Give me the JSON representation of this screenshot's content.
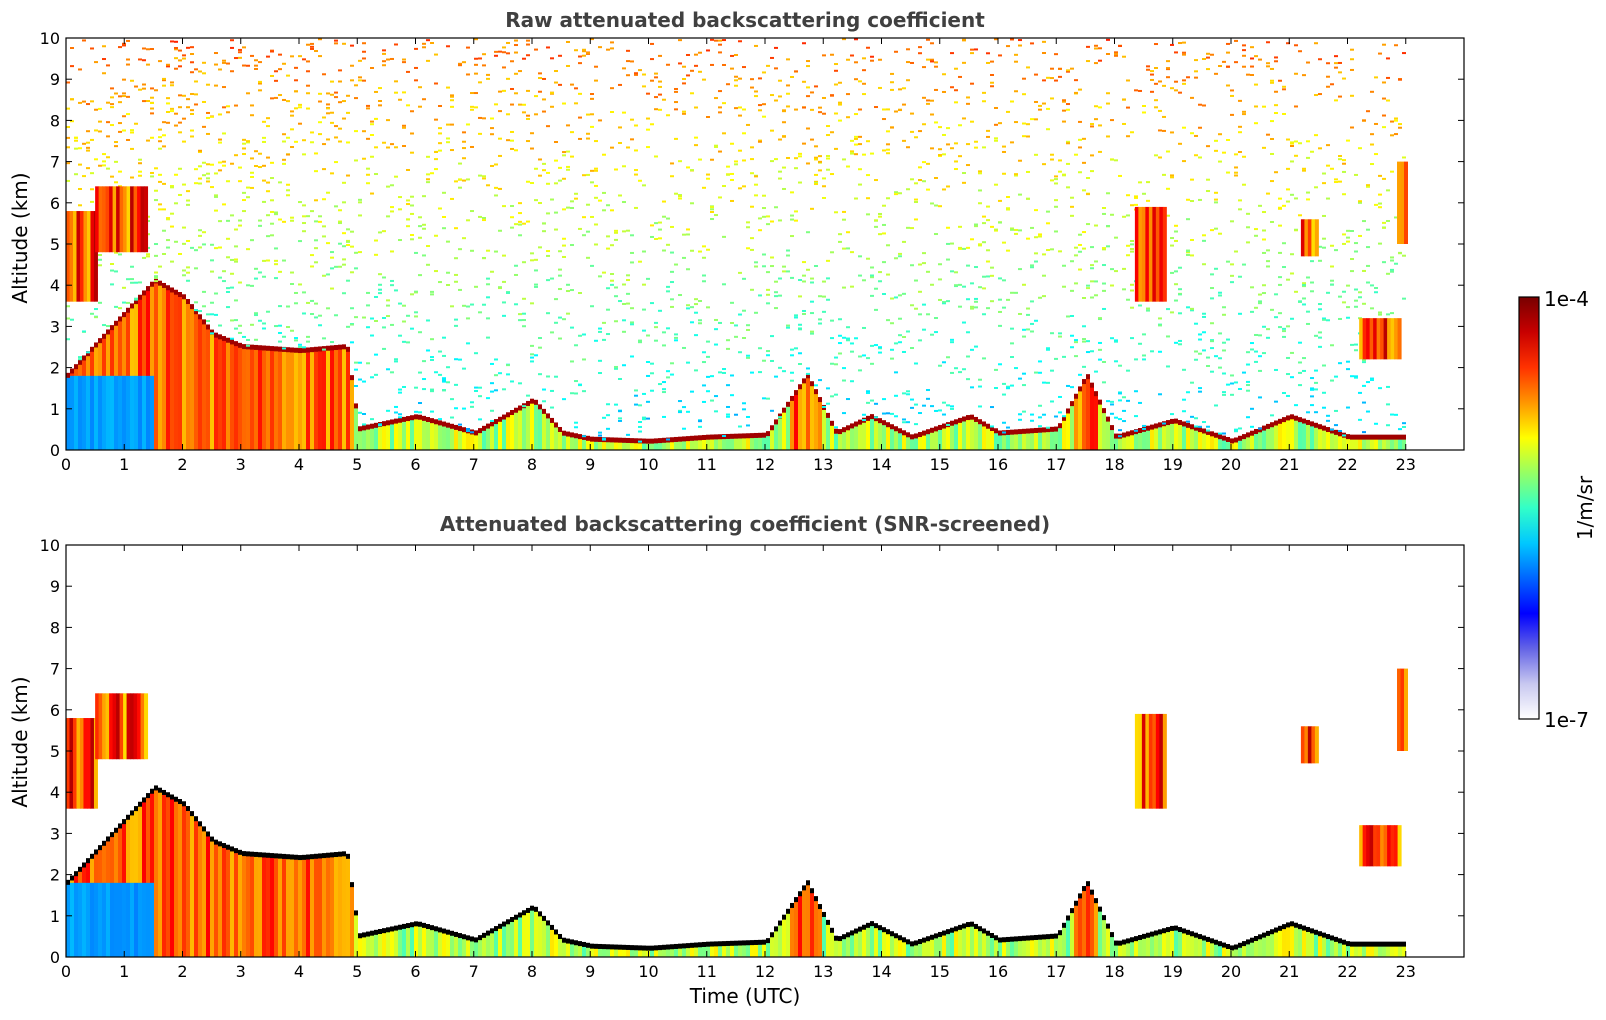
{
  "chart_data": [
    {
      "type": "heatmap",
      "title": "Raw attenuated backscattering coefficient",
      "xlabel": "",
      "ylabel": "Altitude (km)",
      "xlim": [
        0,
        24
      ],
      "ylim": [
        0,
        10
      ],
      "x_ticks": [
        0,
        1,
        2,
        3,
        4,
        5,
        6,
        7,
        8,
        9,
        10,
        11,
        12,
        13,
        14,
        15,
        16,
        17,
        18,
        19,
        20,
        21,
        22,
        23
      ],
      "y_ticks": [
        0,
        1,
        2,
        3,
        4,
        5,
        6,
        7,
        8,
        9,
        10
      ],
      "colormap": "jet",
      "color_scale": "log",
      "data_end_hour": 23,
      "features": {
        "boundary_layer_top_km": [
          [
            0.0,
            1.8
          ],
          [
            1.5,
            4.1
          ],
          [
            2.0,
            3.7
          ],
          [
            2.5,
            2.8
          ],
          [
            3.0,
            2.5
          ],
          [
            4.0,
            2.4
          ],
          [
            4.8,
            2.5
          ],
          [
            5.0,
            0.5
          ],
          [
            6.0,
            0.8
          ],
          [
            7.0,
            0.4
          ],
          [
            7.5,
            0.8
          ],
          [
            8.0,
            1.2
          ],
          [
            8.5,
            0.4
          ],
          [
            9.0,
            0.25
          ],
          [
            10.0,
            0.2
          ],
          [
            11.0,
            0.3
          ],
          [
            12.0,
            0.35
          ],
          [
            12.7,
            1.8
          ],
          [
            13.2,
            0.4
          ],
          [
            13.8,
            0.8
          ],
          [
            14.5,
            0.3
          ],
          [
            15.5,
            0.8
          ],
          [
            16.0,
            0.4
          ],
          [
            17.0,
            0.5
          ],
          [
            17.5,
            1.8
          ],
          [
            18.0,
            0.3
          ],
          [
            19.0,
            0.7
          ],
          [
            20.0,
            0.2
          ],
          [
            21.0,
            0.8
          ],
          [
            22.0,
            0.3
          ],
          [
            23.0,
            0.3
          ]
        ],
        "high_cloud_layers": [
          {
            "x_start": 0.0,
            "x_end": 0.5,
            "bottom_km": 3.6,
            "top_km": 5.8
          },
          {
            "x_start": 0.5,
            "x_end": 1.4,
            "bottom_km": 4.8,
            "top_km": 6.4
          },
          {
            "x_start": 18.35,
            "x_end": 18.85,
            "bottom_km": 3.6,
            "top_km": 5.9
          },
          {
            "x_start": 21.2,
            "x_end": 21.45,
            "bottom_km": 4.7,
            "top_km": 5.6
          },
          {
            "x_start": 22.2,
            "x_end": 22.9,
            "bottom_km": 2.2,
            "top_km": 3.2
          },
          {
            "x_start": 22.85,
            "x_end": 23.0,
            "bottom_km": 5.0,
            "top_km": 7.0
          }
        ]
      }
    },
    {
      "type": "heatmap",
      "title": "Attenuated backscattering coefficient (SNR-screened)",
      "xlabel": "Time (UTC)",
      "ylabel": "Altitude (km)",
      "xlim": [
        0,
        24
      ],
      "ylim": [
        0,
        10
      ],
      "x_ticks": [
        0,
        1,
        2,
        3,
        4,
        5,
        6,
        7,
        8,
        9,
        10,
        11,
        12,
        13,
        14,
        15,
        16,
        17,
        18,
        19,
        20,
        21,
        22,
        23
      ],
      "y_ticks": [
        0,
        1,
        2,
        3,
        4,
        5,
        6,
        7,
        8,
        9,
        10
      ],
      "colormap": "jet",
      "color_scale": "log",
      "data_end_hour": 23,
      "screened": true
    }
  ],
  "colorbar": {
    "label": "1/m/sr",
    "max_label": "1e-4",
    "min_label": "1e-7",
    "colors": [
      "#ffffff",
      "#c8c8f0",
      "#6464e6",
      "#0000ff",
      "#0064ff",
      "#00c8ff",
      "#32ffc8",
      "#96ff64",
      "#ffff00",
      "#ff9600",
      "#ff3200",
      "#c80000",
      "#780000"
    ]
  }
}
